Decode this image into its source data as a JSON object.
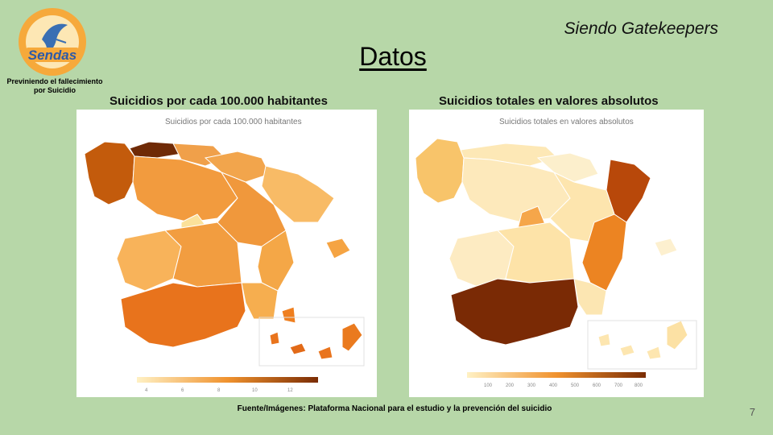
{
  "header": {
    "logo_text": "Sendas",
    "logo_caption": "Previniendo el fallecimiento por Suicidio",
    "subtitle": "Siendo Gatekeepers",
    "title": "Datos"
  },
  "maps": [
    {
      "heading": "Suicidios por cada 100.000 habitantes",
      "inner_title": "Suicidios por cada 100.000 habitantes",
      "legend_ticks": [
        "4",
        "6",
        "8",
        "10",
        "12"
      ]
    },
    {
      "heading": "Suicidios totales en valores absolutos",
      "inner_title": "Suicidios totales en valores absolutos",
      "legend_ticks": [
        "100",
        "200",
        "300",
        "400",
        "500",
        "600",
        "700",
        "800"
      ]
    }
  ],
  "footer": {
    "source": "Fuente/Imágenes: Plataforma Nacional para el estudio y la prevención del suicidio",
    "page_number": "7"
  },
  "colors": {
    "background": "#b7d7a8",
    "scale_low": "#fff1c4",
    "scale_mid": "#f0922e",
    "scale_high": "#7a2c04"
  }
}
